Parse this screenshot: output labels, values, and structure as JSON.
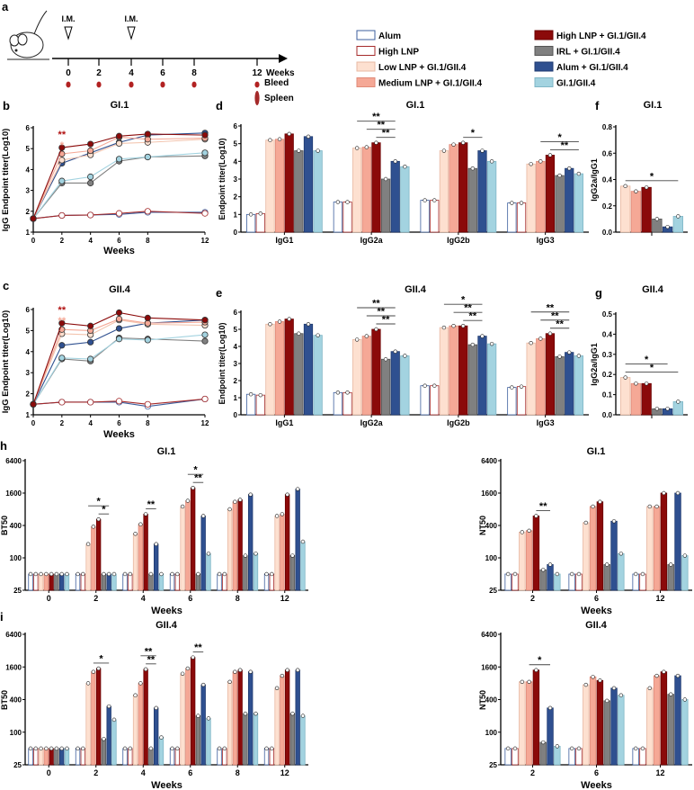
{
  "groups": [
    {
      "name": "Alum",
      "fill": "#ffffff",
      "stroke": "#3d5f9e"
    },
    {
      "name": "High LNP",
      "fill": "#ffffff",
      "stroke": "#a52a2a"
    },
    {
      "name": "Low LNP + GI.1/GII.4",
      "fill": "#fde0d0",
      "stroke": "#e8b9a3"
    },
    {
      "name": "Medium LNP + GI.1/GII.4",
      "fill": "#f5a896",
      "stroke": "#e08a78"
    },
    {
      "name": "High LNP + GI.1/GII.4",
      "fill": "#8b0a0a",
      "stroke": "#6b0000"
    },
    {
      "name": "IRL + GI.1/GII.4",
      "fill": "#808080",
      "stroke": "#555555"
    },
    {
      "name": "Alum +  GI.1/GII.4",
      "fill": "#2f5090",
      "stroke": "#1f3a70"
    },
    {
      "name": "GI.1/GII.4",
      "fill": "#a3d3e0",
      "stroke": "#7fb6c6"
    }
  ],
  "schedule": {
    "panel_label": "a",
    "im_label": "I.M.",
    "im_weeks": [
      0,
      4
    ],
    "weeks": [
      "0",
      "2",
      "4",
      "6",
      "8",
      "12"
    ],
    "weeks_label": "Weeks",
    "bleed_label": "Bleed",
    "spleen_label": "Spleen"
  },
  "chart_data": [
    {
      "id": "b",
      "type": "line",
      "title": "GI.1",
      "xlabel": "Weeks",
      "ylabel": "IgG Endpoint titer(Log10)",
      "x": [
        0,
        2,
        4,
        6,
        8,
        12
      ],
      "xticks": [
        "0",
        "2",
        "4",
        "6",
        "8",
        "12"
      ],
      "ylim": [
        1,
        6
      ],
      "yticks": [
        "1",
        "2",
        "3",
        "4",
        "5",
        "6"
      ],
      "series": [
        {
          "group": 0,
          "values": [
            1.65,
            1.8,
            1.82,
            1.85,
            1.95,
            1.95
          ]
        },
        {
          "group": 1,
          "values": [
            1.65,
            1.8,
            1.82,
            1.9,
            2.0,
            1.9
          ]
        },
        {
          "group": 5,
          "values": [
            1.65,
            3.35,
            3.35,
            4.4,
            4.6,
            4.65
          ]
        },
        {
          "group": 7,
          "values": [
            1.65,
            3.45,
            3.65,
            4.5,
            4.6,
            4.8
          ]
        },
        {
          "group": 6,
          "values": [
            1.65,
            4.3,
            4.8,
            5.3,
            5.65,
            5.75
          ]
        },
        {
          "group": 2,
          "values": [
            1.65,
            4.45,
            4.7,
            5.25,
            5.3,
            5.45
          ]
        },
        {
          "group": 3,
          "values": [
            1.65,
            4.75,
            4.9,
            5.55,
            5.45,
            5.5
          ]
        },
        {
          "group": 4,
          "values": [
            1.65,
            5.05,
            5.22,
            5.6,
            5.7,
            5.65
          ]
        }
      ],
      "annotations": [
        {
          "x": 2,
          "text": "**",
          "color": "#b01010"
        },
        {
          "x": 2,
          "text": "*",
          "color": "#f5a896"
        }
      ]
    },
    {
      "id": "c",
      "type": "line",
      "title": "GII.4",
      "xlabel": "Weeks",
      "ylabel": "IgG Endpoint titer(Log10)",
      "x": [
        0,
        2,
        4,
        6,
        8,
        12
      ],
      "xticks": [
        "0",
        "2",
        "4",
        "6",
        "8",
        "12"
      ],
      "ylim": [
        1,
        6
      ],
      "yticks": [
        "1",
        "2",
        "3",
        "4",
        "5",
        "6"
      ],
      "series": [
        {
          "group": 0,
          "values": [
            1.5,
            1.6,
            1.6,
            1.6,
            1.4,
            1.75
          ]
        },
        {
          "group": 1,
          "values": [
            1.5,
            1.6,
            1.6,
            1.65,
            1.5,
            1.75
          ]
        },
        {
          "group": 5,
          "values": [
            1.5,
            3.65,
            3.55,
            4.65,
            4.6,
            4.5
          ]
        },
        {
          "group": 7,
          "values": [
            1.5,
            3.7,
            3.65,
            4.6,
            4.55,
            4.8
          ]
        },
        {
          "group": 6,
          "values": [
            1.5,
            4.3,
            4.45,
            5.1,
            5.35,
            5.5
          ]
        },
        {
          "group": 2,
          "values": [
            1.5,
            4.85,
            4.8,
            5.5,
            5.3,
            5.25
          ]
        },
        {
          "group": 3,
          "values": [
            1.5,
            5.05,
            5.0,
            5.55,
            5.35,
            5.4
          ]
        },
        {
          "group": 4,
          "values": [
            1.5,
            5.35,
            5.22,
            5.85,
            5.6,
            5.5
          ]
        }
      ],
      "annotations": [
        {
          "x": 2,
          "text": "**",
          "color": "#b01010"
        },
        {
          "x": 2,
          "text": "**",
          "color": "#f5a896"
        }
      ]
    },
    {
      "id": "d",
      "type": "bar",
      "title": "GI.1",
      "ylabel": "Endpoint titer(Log10)",
      "xlabel": "",
      "scale": "linear",
      "ylim": [
        0,
        6
      ],
      "yticks": [
        "0",
        "1",
        "2",
        "3",
        "4",
        "5",
        "6"
      ],
      "tickvals": [
        0,
        1,
        2,
        3,
        4,
        5,
        6
      ],
      "categories": [
        "IgG1",
        "IgG2a",
        "IgG2b",
        "IgG3"
      ],
      "groups": [
        0,
        1,
        2,
        3,
        4,
        5,
        6,
        7
      ],
      "values": [
        [
          1.0,
          1.05,
          5.2,
          5.25,
          5.55,
          4.6,
          5.4,
          4.6
        ],
        [
          1.7,
          1.7,
          4.75,
          4.8,
          5.05,
          3.0,
          4.0,
          3.7
        ],
        [
          1.8,
          1.8,
          4.6,
          4.95,
          5.05,
          3.6,
          4.6,
          4.0
        ],
        [
          1.65,
          1.65,
          3.85,
          4.0,
          4.35,
          3.2,
          3.6,
          3.3
        ]
      ],
      "annotations": [
        {
          "cat": 1,
          "from": 2,
          "to": 6,
          "text": "**"
        },
        {
          "cat": 1,
          "from": 3,
          "to": 6,
          "text": "**"
        },
        {
          "cat": 1,
          "from": 4,
          "to": 6,
          "text": "**"
        },
        {
          "cat": 2,
          "from": 4,
          "to": 6,
          "text": "*"
        },
        {
          "cat": 3,
          "from": 3,
          "to": 7,
          "text": "*"
        },
        {
          "cat": 3,
          "from": 4,
          "to": 7,
          "text": "**"
        }
      ]
    },
    {
      "id": "e",
      "type": "bar",
      "title": "GII.4",
      "ylabel": "Endpoint titer(Log10)",
      "xlabel": "",
      "scale": "linear",
      "ylim": [
        0,
        6
      ],
      "yticks": [
        "0",
        "1",
        "2",
        "3",
        "4",
        "5",
        "6"
      ],
      "tickvals": [
        0,
        1,
        2,
        3,
        4,
        5,
        6
      ],
      "categories": [
        "IgG1",
        "IgG2a",
        "IgG2b",
        "IgG3"
      ],
      "groups": [
        0,
        1,
        2,
        3,
        4,
        5,
        6,
        7
      ],
      "values": [
        [
          1.2,
          1.15,
          5.3,
          5.45,
          5.6,
          4.75,
          5.3,
          4.65
        ],
        [
          1.3,
          1.3,
          4.4,
          4.6,
          5.0,
          3.25,
          3.7,
          3.45
        ],
        [
          1.7,
          1.7,
          5.1,
          5.2,
          5.2,
          4.1,
          4.6,
          4.15
        ],
        [
          1.6,
          1.65,
          4.2,
          4.45,
          4.75,
          3.4,
          3.65,
          3.45
        ]
      ],
      "annotations": [
        {
          "cat": 1,
          "from": 2,
          "to": 6,
          "text": "**"
        },
        {
          "cat": 1,
          "from": 3,
          "to": 6,
          "text": "**"
        },
        {
          "cat": 1,
          "from": 4,
          "to": 6,
          "text": "**"
        },
        {
          "cat": 2,
          "from": 2,
          "to": 6,
          "text": "*"
        },
        {
          "cat": 2,
          "from": 3,
          "to": 6,
          "text": "**"
        },
        {
          "cat": 2,
          "from": 4,
          "to": 6,
          "text": "**"
        },
        {
          "cat": 3,
          "from": 2,
          "to": 6,
          "text": "**"
        },
        {
          "cat": 3,
          "from": 3,
          "to": 6,
          "text": "**"
        },
        {
          "cat": 3,
          "from": 4,
          "to": 6,
          "text": "**"
        }
      ]
    },
    {
      "id": "f",
      "type": "bar",
      "title": "GI.1",
      "ylabel": "IgG2a/IgG1",
      "xlabel": "",
      "scale": "linear",
      "ylim": [
        0,
        0.8
      ],
      "yticks": [
        "0.0",
        "0.2",
        "0.4",
        "0.6",
        "0.8"
      ],
      "tickvals": [
        0,
        0.2,
        0.4,
        0.6,
        0.8
      ],
      "categories": [
        ""
      ],
      "groups": [
        2,
        3,
        4,
        5,
        6,
        7
      ],
      "values": [
        [
          0.35,
          0.31,
          0.34,
          0.1,
          0.04,
          0.12
        ]
      ],
      "annotations": [
        {
          "cat": 0,
          "from": 0,
          "to": 5,
          "text": "*"
        }
      ]
    },
    {
      "id": "g",
      "type": "bar",
      "title": "GII.4",
      "ylabel": "IgG2a/IgG1",
      "xlabel": "",
      "scale": "linear",
      "ylim": [
        0,
        0.5
      ],
      "yticks": [
        "0.0",
        "0.1",
        "0.2",
        "0.3",
        "0.4",
        "0.5"
      ],
      "tickvals": [
        0,
        0.1,
        0.2,
        0.3,
        0.4,
        0.5
      ],
      "categories": [
        ""
      ],
      "groups": [
        2,
        3,
        4,
        5,
        6,
        7
      ],
      "values": [
        [
          0.185,
          0.155,
          0.155,
          0.03,
          0.03,
          0.065
        ]
      ],
      "annotations": [
        {
          "cat": 0,
          "from": 0,
          "to": 4,
          "text": "*"
        },
        {
          "cat": 0,
          "from": 0,
          "to": 5,
          "text": "*"
        }
      ]
    },
    {
      "id": "h",
      "type": "bar",
      "title": "GI.1",
      "ylabel": "BT50",
      "xlabel": "Weeks",
      "scale": "log2",
      "ylim": [
        25,
        6400
      ],
      "yticks": [
        "25",
        "100",
        "400",
        "1600",
        "6400"
      ],
      "tickvals": [
        25,
        100,
        400,
        1600,
        6400
      ],
      "categories": [
        "0",
        "2",
        "4",
        "6",
        "8",
        "12"
      ],
      "groups": [
        0,
        1,
        2,
        3,
        4,
        5,
        6,
        7
      ],
      "values": [
        [
          50,
          50,
          50,
          50,
          50,
          50,
          50,
          50
        ],
        [
          50,
          50,
          180,
          380,
          520,
          50,
          50,
          50
        ],
        [
          50,
          50,
          280,
          420,
          650,
          50,
          180,
          50
        ],
        [
          50,
          50,
          900,
          1150,
          2000,
          50,
          600,
          120
        ],
        [
          50,
          50,
          800,
          1100,
          1200,
          110,
          1500,
          120
        ],
        [
          50,
          50,
          600,
          650,
          1500,
          110,
          1900,
          200
        ]
      ],
      "annotations": [
        {
          "cat": 1,
          "from": 2,
          "to": 6,
          "text": "*"
        },
        {
          "cat": 1,
          "from": 4,
          "to": 6,
          "text": "*"
        },
        {
          "cat": 2,
          "from": 4,
          "to": 6,
          "text": "**"
        },
        {
          "cat": 3,
          "from": 3,
          "to": 6,
          "text": "*"
        },
        {
          "cat": 3,
          "from": 4,
          "to": 6,
          "text": "**"
        }
      ]
    },
    {
      "id": "h2",
      "type": "bar",
      "title": "GI.1",
      "ylabel": "NT50",
      "xlabel": "Weeks",
      "scale": "log2",
      "ylim": [
        25,
        6400
      ],
      "yticks": [
        "25",
        "100",
        "400",
        "1600",
        "6400"
      ],
      "tickvals": [
        25,
        100,
        400,
        1600,
        6400
      ],
      "categories": [
        "2",
        "6",
        "12"
      ],
      "groups": [
        0,
        1,
        2,
        3,
        4,
        5,
        6,
        7
      ],
      "values": [
        [
          50,
          50,
          300,
          320,
          600,
          60,
          75,
          50
        ],
        [
          50,
          50,
          450,
          900,
          1100,
          75,
          480,
          120
        ],
        [
          50,
          50,
          900,
          900,
          1600,
          75,
          1600,
          110
        ]
      ],
      "annotations": [
        {
          "cat": 0,
          "from": 4,
          "to": 6,
          "text": "**"
        }
      ]
    },
    {
      "id": "i",
      "type": "bar",
      "title": "GII.4",
      "ylabel": "BT50",
      "xlabel": "Weeks",
      "scale": "log2",
      "ylim": [
        25,
        6400
      ],
      "yticks": [
        "25",
        "100",
        "400",
        "1600",
        "6400"
      ],
      "tickvals": [
        25,
        100,
        400,
        1600,
        6400
      ],
      "categories": [
        "0",
        "2",
        "4",
        "6",
        "8",
        "12"
      ],
      "groups": [
        0,
        1,
        2,
        3,
        4,
        5,
        6,
        7
      ],
      "values": [
        [
          50,
          50,
          50,
          50,
          50,
          50,
          50,
          50
        ],
        [
          50,
          50,
          800,
          1300,
          1500,
          75,
          300,
          170
        ],
        [
          50,
          50,
          480,
          800,
          1450,
          50,
          280,
          80
        ],
        [
          50,
          50,
          1200,
          1500,
          2400,
          200,
          750,
          180
        ],
        [
          50,
          50,
          850,
          1300,
          1400,
          220,
          1300,
          220
        ],
        [
          50,
          50,
          650,
          1100,
          1400,
          220,
          1400,
          200
        ]
      ],
      "annotations": [
        {
          "cat": 1,
          "from": 3,
          "to": 6,
          "text": "*"
        },
        {
          "cat": 2,
          "from": 3,
          "to": 6,
          "text": "**"
        },
        {
          "cat": 2,
          "from": 4,
          "to": 6,
          "text": "**"
        },
        {
          "cat": 3,
          "from": 4,
          "to": 6,
          "text": "**"
        }
      ]
    },
    {
      "id": "i2",
      "type": "bar",
      "title": "GII.4",
      "ylabel": "NT50",
      "xlabel": "Weeks",
      "scale": "log2",
      "ylim": [
        25,
        6400
      ],
      "yticks": [
        "25",
        "100",
        "400",
        "1600",
        "6400"
      ],
      "tickvals": [
        25,
        100,
        400,
        1600,
        6400
      ],
      "categories": [
        "2",
        "6",
        "12"
      ],
      "groups": [
        0,
        1,
        2,
        3,
        4,
        5,
        6,
        7
      ],
      "values": [
        [
          50,
          50,
          850,
          850,
          1400,
          65,
          280,
          55
        ],
        [
          50,
          50,
          750,
          1050,
          900,
          380,
          650,
          480
        ],
        [
          50,
          50,
          650,
          1100,
          1300,
          500,
          1100,
          400
        ]
      ],
      "annotations": [
        {
          "cat": 0,
          "from": 3,
          "to": 6,
          "text": "*"
        }
      ]
    }
  ]
}
